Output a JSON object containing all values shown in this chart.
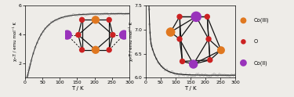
{
  "left_plot": {
    "xlabel": "T / K",
    "ylabel": "χₘT / emu mol⁻¹ K",
    "xlim": [
      0,
      300
    ],
    "ylim": [
      1.0,
      6.0
    ],
    "yticks": [
      2,
      4,
      6
    ],
    "ytick_labels": [
      "2",
      "4",
      "6"
    ],
    "xticks": [
      0,
      50,
      100,
      150,
      200,
      250,
      300
    ],
    "curve_color": "#333333",
    "dot_edgecolor": "#999999"
  },
  "right_plot": {
    "xlabel": "T / K",
    "ylabel": "χₘT / emu mol⁻¹ K",
    "xlim": [
      0,
      300
    ],
    "ylim": [
      6.0,
      7.5
    ],
    "yticks": [
      6.0,
      6.5,
      7.0,
      7.5
    ],
    "ytick_labels": [
      "6.0",
      "6.5",
      "7.0",
      "7.5"
    ],
    "xticks": [
      0,
      50,
      100,
      150,
      200,
      250,
      300
    ],
    "curve_color": "#111111",
    "dot_edgecolor": "#999999"
  },
  "legend": {
    "CoIII_color": "#E07820",
    "O_color": "#CC2222",
    "CoII_color": "#9933BB",
    "labels": [
      "Co(III)",
      "O",
      "Co(II)"
    ]
  },
  "bond_color": "#111111",
  "bg_color": "#eeece8"
}
